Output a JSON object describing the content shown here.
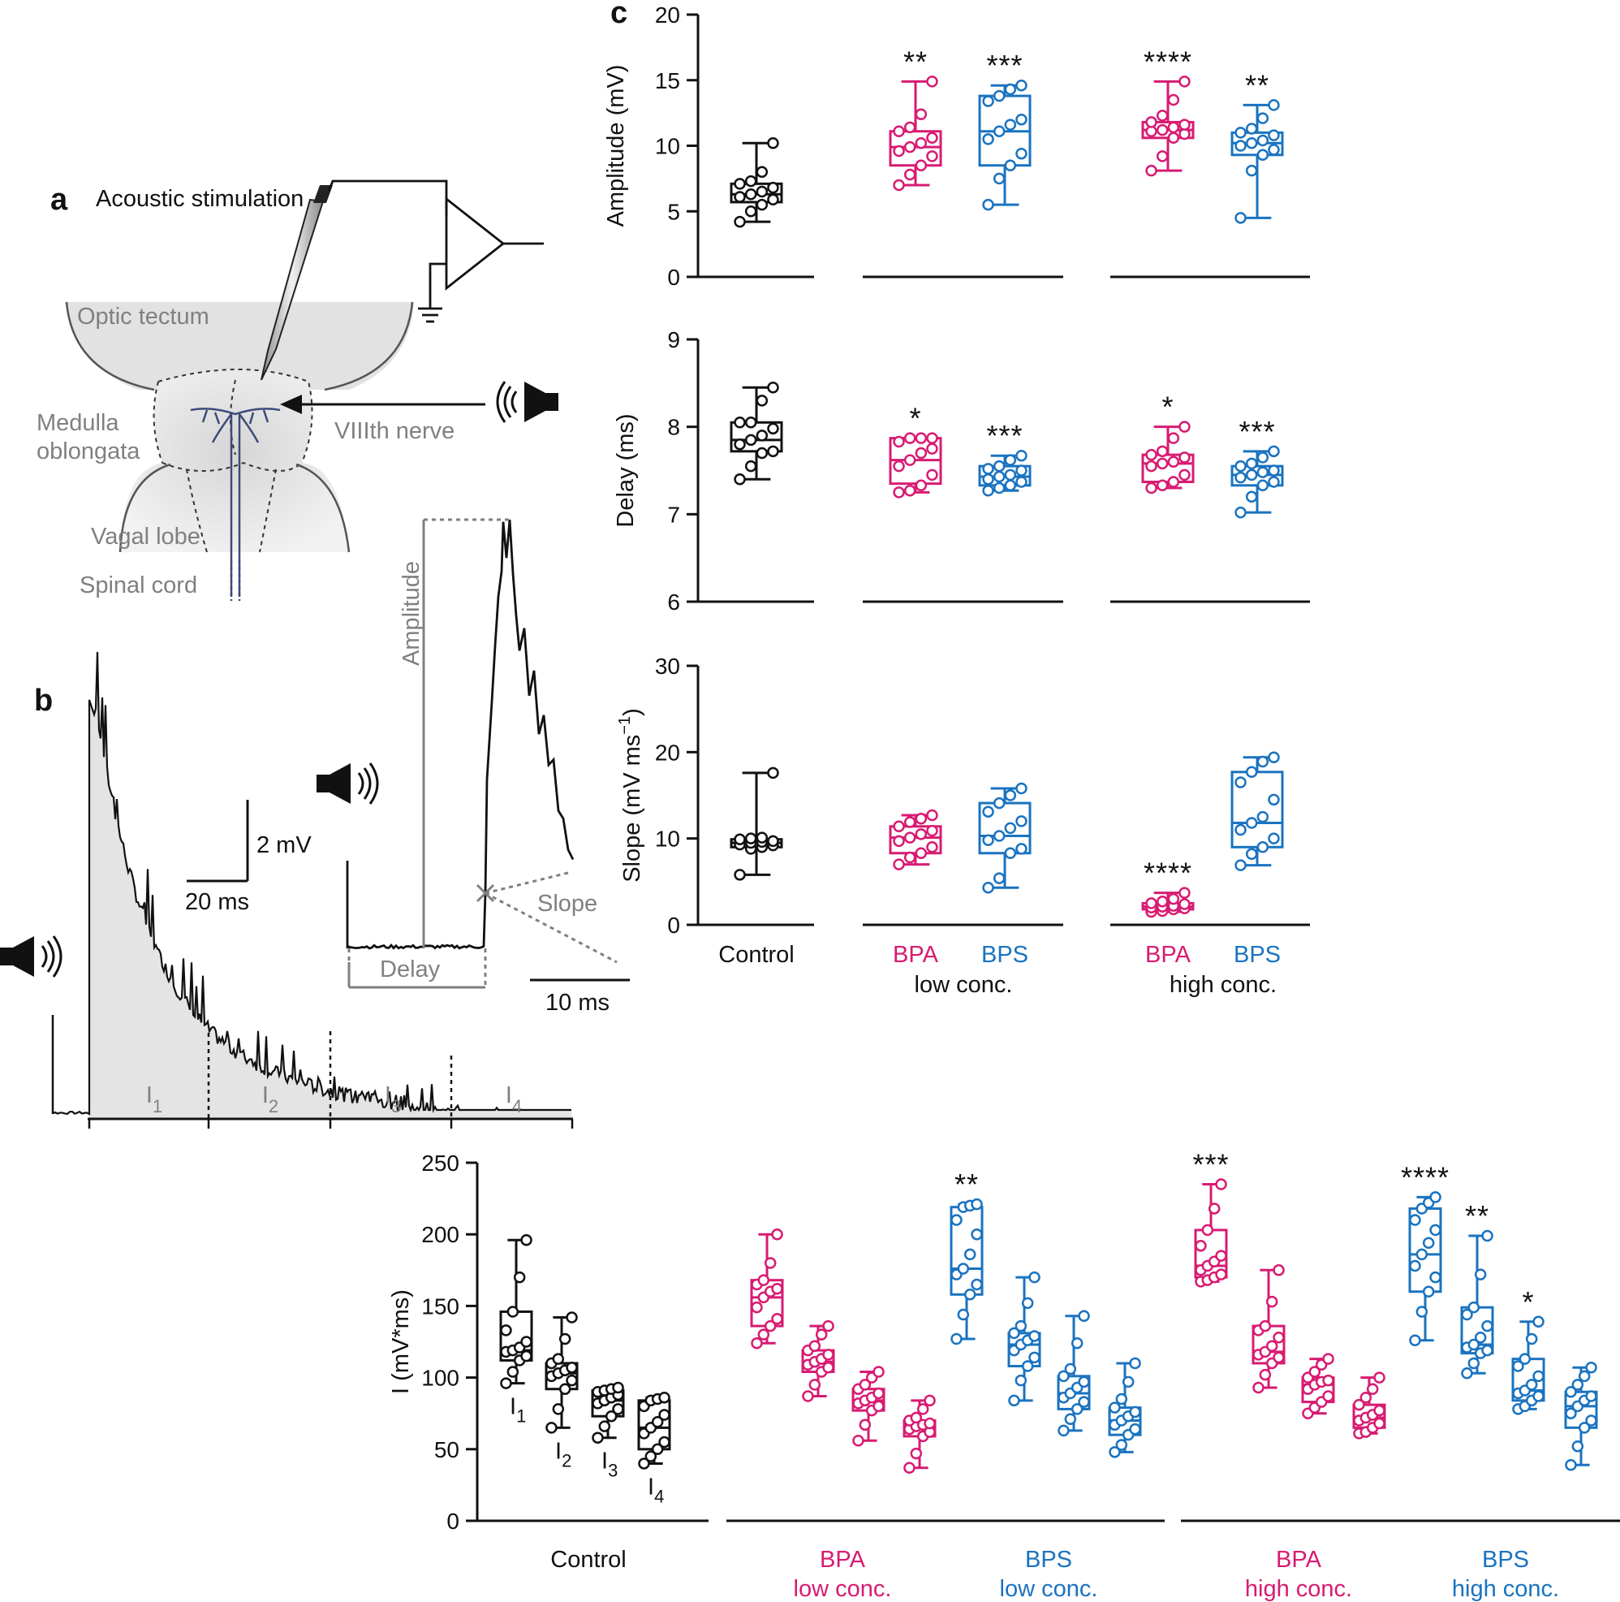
{
  "panels": {
    "a": {
      "letter": "a",
      "title": "Acoustic stimulation",
      "labels": {
        "optic_tectum": "Optic tectum",
        "medulla1": "Medulla",
        "medulla2": "oblongata",
        "viiith": "VIIIth nerve",
        "vagal": "Vagal lobe",
        "spinal": "Spinal cord"
      }
    },
    "b": {
      "letter": "b",
      "scalebar_v": "2 mV",
      "scalebar_h": "20 ms",
      "inset_scalebar": "10 ms",
      "amplitude": "Amplitude",
      "delay": "Delay",
      "slope": "Slope",
      "intervals": [
        {
          "base": "I",
          "sub": "1"
        },
        {
          "base": "I",
          "sub": "2"
        },
        {
          "base": "I",
          "sub": "3"
        },
        {
          "base": "I",
          "sub": "4"
        }
      ]
    },
    "c": {
      "letter": "c"
    }
  },
  "colors": {
    "control": "#111111",
    "bpa": "#d81b72",
    "bps": "#1a73c0",
    "grey": "#808080"
  },
  "chart_data": [
    {
      "type": "box",
      "id": "amplitude",
      "ylabel": "Amplitude (mV)",
      "ylim": [
        0,
        20
      ],
      "yticks": [
        0,
        5,
        10,
        15,
        20
      ],
      "groups": [
        {
          "name": "Control",
          "color": "control",
          "min": 4.2,
          "q1": 5.7,
          "median": 6.3,
          "q3": 7.1,
          "max": 10.2,
          "points": [
            4.2,
            5.0,
            5.5,
            5.9,
            6.1,
            6.3,
            6.5,
            6.8,
            7.1,
            7.3,
            8.0,
            10.2
          ],
          "sig": ""
        },
        {
          "name": "BPA low conc.",
          "color": "bpa",
          "min": 7.0,
          "q1": 8.5,
          "median": 9.9,
          "q3": 11.1,
          "max": 14.9,
          "points": [
            7.0,
            7.8,
            8.5,
            9.2,
            9.6,
            9.9,
            10.2,
            10.6,
            11.1,
            11.4,
            12.4,
            14.9
          ],
          "sig": "**"
        },
        {
          "name": "BPS low conc.",
          "color": "bps",
          "min": 5.5,
          "q1": 8.5,
          "median": 11.1,
          "q3": 13.8,
          "max": 14.6,
          "points": [
            5.5,
            7.5,
            8.5,
            9.4,
            10.5,
            11.1,
            11.6,
            12.0,
            13.4,
            13.8,
            14.3,
            14.6
          ],
          "sig": "***"
        },
        {
          "name": "BPA high conc.",
          "color": "bpa",
          "min": 8.1,
          "q1": 10.6,
          "median": 11.2,
          "q3": 11.8,
          "max": 14.9,
          "points": [
            8.1,
            9.2,
            10.6,
            10.9,
            11.1,
            11.2,
            11.4,
            11.6,
            11.8,
            12.3,
            13.5,
            14.9
          ],
          "sig": "****"
        },
        {
          "name": "BPS high conc.",
          "color": "bps",
          "min": 4.5,
          "q1": 9.3,
          "median": 10.2,
          "q3": 11.0,
          "max": 13.1,
          "points": [
            4.5,
            8.1,
            9.3,
            9.7,
            10.0,
            10.2,
            10.4,
            10.8,
            11.0,
            11.3,
            12.1,
            13.1
          ],
          "sig": "**"
        }
      ]
    },
    {
      "type": "box",
      "id": "delay",
      "ylabel": "Delay (ms)",
      "ylim": [
        6,
        9
      ],
      "yticks": [
        6,
        7,
        8,
        9
      ],
      "groups": [
        {
          "name": "Control",
          "color": "control",
          "min": 7.4,
          "q1": 7.72,
          "median": 7.85,
          "q3": 8.05,
          "max": 8.45,
          "points": [
            7.4,
            7.55,
            7.7,
            7.72,
            7.8,
            7.85,
            7.9,
            7.98,
            8.05,
            8.05,
            8.3,
            8.45
          ],
          "sig": ""
        },
        {
          "name": "BPA low conc.",
          "color": "bpa",
          "min": 7.25,
          "q1": 7.35,
          "median": 7.62,
          "q3": 7.87,
          "max": 7.87,
          "points": [
            7.25,
            7.27,
            7.33,
            7.45,
            7.55,
            7.62,
            7.7,
            7.75,
            7.83,
            7.87,
            7.87,
            7.87
          ],
          "sig": "*"
        },
        {
          "name": "BPS low conc.",
          "color": "bps",
          "min": 7.27,
          "q1": 7.33,
          "median": 7.43,
          "q3": 7.55,
          "max": 7.67,
          "points": [
            7.27,
            7.3,
            7.33,
            7.37,
            7.4,
            7.43,
            7.45,
            7.5,
            7.52,
            7.55,
            7.62,
            7.67
          ],
          "sig": "***"
        },
        {
          "name": "BPA high conc.",
          "color": "bpa",
          "min": 7.3,
          "q1": 7.37,
          "median": 7.58,
          "q3": 7.68,
          "max": 8.0,
          "points": [
            7.3,
            7.33,
            7.37,
            7.45,
            7.55,
            7.58,
            7.6,
            7.65,
            7.68,
            7.72,
            7.87,
            8.0
          ],
          "sig": "*"
        },
        {
          "name": "BPS high conc.",
          "color": "bps",
          "min": 7.02,
          "q1": 7.33,
          "median": 7.45,
          "q3": 7.55,
          "max": 7.72,
          "points": [
            7.02,
            7.2,
            7.33,
            7.37,
            7.42,
            7.45,
            7.48,
            7.5,
            7.55,
            7.58,
            7.65,
            7.72
          ],
          "sig": "***"
        }
      ]
    },
    {
      "type": "box",
      "id": "slope",
      "ylabel": "Slope (mV ms",
      "ylabel_sup": "−1",
      "ylabel_end": ")",
      "ylim": [
        0,
        30
      ],
      "yticks": [
        0,
        10,
        20,
        30
      ],
      "xlabels": {
        "control": "Control",
        "bpa_low": "BPA",
        "bps_low": "BPS",
        "low": "low conc.",
        "bpa_high": "BPA",
        "bps_high": "BPS",
        "high": "high conc."
      },
      "groups": [
        {
          "name": "Control",
          "color": "control",
          "min": 5.8,
          "q1": 9.0,
          "median": 9.5,
          "q3": 9.9,
          "max": 17.6,
          "points": [
            5.8,
            8.8,
            9.0,
            9.2,
            9.3,
            9.5,
            9.6,
            9.7,
            9.9,
            10.0,
            10.1,
            17.6
          ],
          "sig": ""
        },
        {
          "name": "BPA low conc.",
          "color": "bpa",
          "min": 7.0,
          "q1": 8.3,
          "median": 10.1,
          "q3": 11.4,
          "max": 12.7,
          "points": [
            7.0,
            7.8,
            8.3,
            9.0,
            9.7,
            10.1,
            10.5,
            10.9,
            11.4,
            11.9,
            12.3,
            12.7
          ],
          "sig": ""
        },
        {
          "name": "BPS low conc.",
          "color": "bps",
          "min": 4.3,
          "q1": 8.3,
          "median": 10.3,
          "q3": 14.1,
          "max": 15.8,
          "points": [
            4.3,
            5.4,
            8.3,
            8.8,
            9.8,
            10.3,
            11.2,
            12.0,
            13.1,
            14.1,
            15.0,
            15.8
          ],
          "sig": ""
        },
        {
          "name": "BPA high conc.",
          "color": "bpa",
          "min": 1.5,
          "q1": 1.8,
          "median": 2.1,
          "q3": 2.5,
          "max": 3.7,
          "points": [
            1.5,
            1.6,
            1.8,
            1.9,
            2.0,
            2.1,
            2.2,
            2.4,
            2.5,
            2.7,
            3.0,
            3.7
          ],
          "sig": "****"
        },
        {
          "name": "BPS high conc.",
          "color": "bps",
          "min": 6.9,
          "q1": 9.0,
          "median": 11.8,
          "q3": 17.7,
          "max": 19.4,
          "points": [
            6.9,
            8.2,
            9.0,
            10.0,
            11.0,
            11.8,
            12.5,
            14.5,
            16.5,
            17.7,
            18.9,
            19.4
          ],
          "sig": ""
        }
      ]
    },
    {
      "type": "box",
      "id": "integral",
      "ylabel": "I (mV*ms)",
      "ylim": [
        0,
        250
      ],
      "yticks": [
        0,
        50,
        100,
        150,
        200,
        250
      ],
      "xlabels": {
        "control": "Control",
        "bpa_low_1": "BPA",
        "bpa_low_2": "low conc.",
        "bps_low_1": "BPS",
        "bps_low_2": "low conc.",
        "bpa_high_1": "BPA",
        "bpa_high_2": "high conc.",
        "bps_high_1": "BPS",
        "bps_high_2": "high conc."
      },
      "interval_labels": [
        {
          "base": "I",
          "sub": "1"
        },
        {
          "base": "I",
          "sub": "2"
        },
        {
          "base": "I",
          "sub": "3"
        },
        {
          "base": "I",
          "sub": "4"
        }
      ],
      "groups": [
        {
          "name": "Control I1",
          "color": "control",
          "min": 96,
          "q1": 112,
          "median": 119,
          "q3": 146,
          "max": 196,
          "points": [
            96,
            104,
            112,
            115,
            118,
            119,
            121,
            125,
            133,
            146,
            170,
            196
          ],
          "sig": ""
        },
        {
          "name": "Control I2",
          "color": "control",
          "min": 65,
          "q1": 92,
          "median": 103,
          "q3": 110,
          "max": 142,
          "points": [
            65,
            78,
            92,
            98,
            101,
            103,
            105,
            107,
            110,
            113,
            127,
            142
          ],
          "sig": ""
        },
        {
          "name": "Control I3",
          "color": "control",
          "min": 58,
          "q1": 73,
          "median": 84,
          "q3": 91,
          "max": 93,
          "points": [
            58,
            66,
            73,
            78,
            82,
            84,
            86,
            88,
            90,
            91,
            92,
            93
          ],
          "sig": ""
        },
        {
          "name": "Control I4",
          "color": "control",
          "min": 40,
          "q1": 50,
          "median": 65,
          "q3": 84,
          "max": 86,
          "points": [
            40,
            45,
            50,
            55,
            61,
            65,
            69,
            74,
            80,
            84,
            85,
            86
          ],
          "sig": ""
        },
        {
          "name": "BPA low I1",
          "color": "bpa",
          "min": 124,
          "q1": 136,
          "median": 156,
          "q3": 168,
          "max": 200,
          "points": [
            124,
            130,
            136,
            141,
            149,
            156,
            160,
            162,
            165,
            168,
            180,
            200
          ],
          "sig": ""
        },
        {
          "name": "BPA low I2",
          "color": "bpa",
          "min": 87,
          "q1": 104,
          "median": 111,
          "q3": 119,
          "max": 136,
          "points": [
            87,
            95,
            104,
            107,
            109,
            111,
            113,
            116,
            119,
            122,
            130,
            136
          ],
          "sig": ""
        },
        {
          "name": "BPA low I3",
          "color": "bpa",
          "min": 56,
          "q1": 77,
          "median": 84,
          "q3": 92,
          "max": 104,
          "points": [
            56,
            67,
            77,
            80,
            82,
            84,
            86,
            89,
            92,
            95,
            100,
            104
          ],
          "sig": ""
        },
        {
          "name": "BPA low I4",
          "color": "bpa",
          "min": 37,
          "q1": 59,
          "median": 66,
          "q3": 70,
          "max": 84,
          "points": [
            37,
            47,
            59,
            62,
            64,
            66,
            67,
            68,
            70,
            72,
            78,
            84
          ],
          "sig": ""
        },
        {
          "name": "BPS low I1",
          "color": "bps",
          "min": 127,
          "q1": 158,
          "median": 176,
          "q3": 219,
          "max": 221,
          "points": [
            127,
            144,
            158,
            165,
            172,
            176,
            186,
            200,
            210,
            219,
            220,
            221
          ],
          "sig": "**"
        },
        {
          "name": "BPS low I2",
          "color": "bps",
          "min": 84,
          "q1": 108,
          "median": 123,
          "q3": 131,
          "max": 170,
          "points": [
            84,
            98,
            108,
            114,
            119,
            123,
            126,
            129,
            131,
            136,
            152,
            170
          ],
          "sig": ""
        },
        {
          "name": "BPS low I3",
          "color": "bps",
          "min": 63,
          "q1": 78,
          "median": 89,
          "q3": 101,
          "max": 143,
          "points": [
            63,
            71,
            78,
            83,
            86,
            89,
            93,
            97,
            101,
            106,
            124,
            143
          ],
          "sig": ""
        },
        {
          "name": "BPS low I4",
          "color": "bps",
          "min": 48,
          "q1": 60,
          "median": 70,
          "q3": 79,
          "max": 110,
          "points": [
            48,
            53,
            60,
            64,
            67,
            70,
            73,
            76,
            79,
            85,
            97,
            110
          ],
          "sig": ""
        },
        {
          "name": "BPA high I1",
          "color": "bpa",
          "min": 167,
          "q1": 170,
          "median": 178,
          "q3": 203,
          "max": 235,
          "points": [
            167,
            168,
            170,
            172,
            175,
            178,
            181,
            185,
            192,
            203,
            218,
            235
          ],
          "sig": "***"
        },
        {
          "name": "BPA high I2",
          "color": "bpa",
          "min": 93,
          "q1": 110,
          "median": 118,
          "q3": 136,
          "max": 175,
          "points": [
            93,
            102,
            110,
            114,
            116,
            118,
            122,
            128,
            133,
            136,
            153,
            175
          ],
          "sig": ""
        },
        {
          "name": "BPA high I3",
          "color": "bpa",
          "min": 75,
          "q1": 83,
          "median": 95,
          "q3": 100,
          "max": 113,
          "points": [
            75,
            79,
            83,
            87,
            92,
            95,
            97,
            98,
            100,
            104,
            109,
            113
          ],
          "sig": ""
        },
        {
          "name": "BPA high I4",
          "color": "bpa",
          "min": 61,
          "q1": 65,
          "median": 72,
          "q3": 81,
          "max": 100,
          "points": [
            61,
            62,
            65,
            68,
            70,
            72,
            74,
            77,
            81,
            86,
            92,
            100
          ],
          "sig": ""
        },
        {
          "name": "BPS high I1",
          "color": "bps",
          "min": 126,
          "q1": 160,
          "median": 186,
          "q3": 218,
          "max": 226,
          "points": [
            126,
            146,
            160,
            170,
            178,
            186,
            194,
            203,
            210,
            218,
            222,
            226
          ],
          "sig": "****"
        },
        {
          "name": "BPS high I2",
          "color": "bps",
          "min": 103,
          "q1": 117,
          "median": 123,
          "q3": 149,
          "max": 199,
          "points": [
            103,
            110,
            117,
            119,
            121,
            123,
            128,
            136,
            144,
            149,
            172,
            199
          ],
          "sig": "**"
        },
        {
          "name": "BPS high I3",
          "color": "bps",
          "min": 78,
          "q1": 84,
          "median": 91,
          "q3": 113,
          "max": 139,
          "points": [
            78,
            80,
            84,
            87,
            89,
            91,
            95,
            101,
            108,
            113,
            127,
            139
          ],
          "sig": "*"
        },
        {
          "name": "BPS high I4",
          "color": "bps",
          "min": 39,
          "q1": 65,
          "median": 80,
          "q3": 90,
          "max": 107,
          "points": [
            39,
            52,
            65,
            70,
            75,
            80,
            84,
            87,
            90,
            95,
            101,
            107
          ],
          "sig": ""
        }
      ]
    }
  ]
}
